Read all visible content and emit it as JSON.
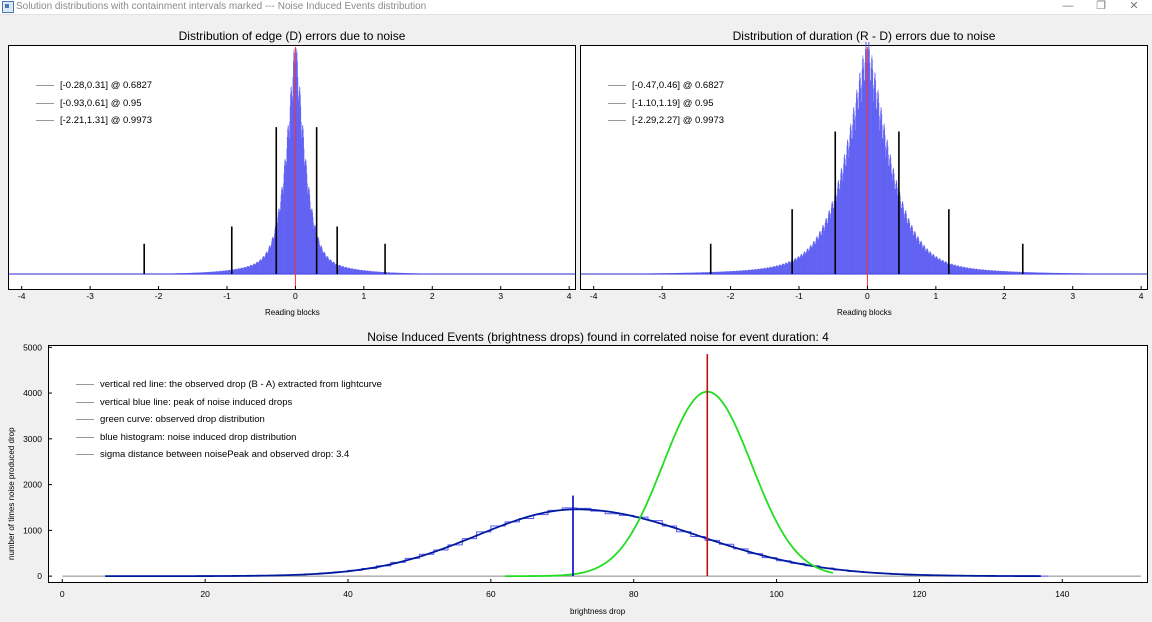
{
  "window": {
    "title": "Solution distributions with containment intervals marked --- Noise Induced Events distribution",
    "minimize_glyph": "—",
    "maximize_glyph": "❐",
    "close_glyph": "✕"
  },
  "chart_data": [
    {
      "type": "bar",
      "title": "Distribution of edge (D) errors due to noise",
      "xlabel": "Reading blocks",
      "ylabel": "",
      "xlim": [
        -4.2,
        4.1
      ],
      "xticks": [
        -4,
        -3,
        -2,
        -1,
        0,
        1,
        2,
        3,
        4
      ],
      "histogram": {
        "shape": "peaked",
        "center": 0.0,
        "scale": 0.18,
        "tail_decay": 0.45,
        "bar_color": "#4a4af0"
      },
      "center_line": {
        "x": 0.0,
        "color": "#ff3030"
      },
      "interval_markers": [
        {
          "x": -0.28,
          "height": 0.68
        },
        {
          "x": 0.31,
          "height": 0.68
        },
        {
          "x": -0.93,
          "height": 0.22
        },
        {
          "x": 0.61,
          "height": 0.22
        },
        {
          "x": -2.21,
          "height": 0.14
        },
        {
          "x": 1.31,
          "height": 0.14
        }
      ],
      "legend": [
        "[-0.28,0.31] @ 0.6827",
        "[-0.93,0.61] @ 0.95",
        "[-2.21,1.31] @ 0.9973"
      ]
    },
    {
      "type": "bar",
      "title": "Distribution of duration (R - D) errors due to noise",
      "xlabel": "Reading blocks",
      "ylabel": "",
      "xlim": [
        -4.2,
        4.1
      ],
      "xticks": [
        -4,
        -3,
        -2,
        -1,
        0,
        1,
        2,
        3,
        4
      ],
      "histogram": {
        "shape": "peaked",
        "center": 0.0,
        "scale": 0.42,
        "tail_decay": 0.8,
        "bar_color": "#4a4af0"
      },
      "center_line": {
        "x": 0.0,
        "color": "#ff3030"
      },
      "interval_markers": [
        {
          "x": -0.47,
          "height": 0.66
        },
        {
          "x": 0.46,
          "height": 0.66
        },
        {
          "x": -1.1,
          "height": 0.3
        },
        {
          "x": 1.19,
          "height": 0.3
        },
        {
          "x": -2.29,
          "height": 0.14
        },
        {
          "x": 2.27,
          "height": 0.14
        }
      ],
      "legend": [
        "[-0.47,0.46] @ 0.6827",
        "[-1.10,1.19] @ 0.95",
        "[-2.29,2.27] @ 0.9973"
      ]
    },
    {
      "type": "line",
      "title": "Noise Induced Events (brightness drops) found in correlated noise for event duration: 4",
      "xlabel": "brightness drop",
      "ylabel": "number of times noise produced drop",
      "xlim": [
        -2,
        152
      ],
      "ylim": [
        -150,
        5050
      ],
      "xticks": [
        0,
        20,
        40,
        60,
        80,
        100,
        120,
        140
      ],
      "yticks": [
        0,
        1000,
        2000,
        3000,
        4000,
        5000
      ],
      "series": [
        {
          "name": "green curve: observed drop distribution",
          "color": "#22dd22",
          "kind": "gaussian",
          "mean": 90.3,
          "sigma": 6.2,
          "peak": 4030,
          "xrange": [
            62,
            108
          ]
        },
        {
          "name": "blue histogram: noise induced drop distribution",
          "color": "#001a9e",
          "kind": "skewed",
          "mode": 72,
          "sigma_left": 14,
          "sigma_right": 17,
          "peak": 1460,
          "xrange": [
            6,
            137
          ]
        }
      ],
      "baseline": {
        "y": 0,
        "color": "#888888",
        "xrange": [
          0,
          151
        ]
      },
      "vertical_lines": [
        {
          "name": "vertical red line: the observed drop (B - A) extracted from lightcurve",
          "x": 90.3,
          "ytop": 4850,
          "color": "#c01010"
        },
        {
          "name": "vertical blue line: peak of noise induced drops",
          "x": 71.5,
          "ytop": 1760,
          "color": "#0000cc"
        }
      ],
      "legend": [
        "vertical red line: the observed drop (B - A) extracted from lightcurve",
        "vertical blue line: peak of noise induced drops",
        "green curve: observed drop distribution",
        "blue histogram: noise induced drop distribution",
        "sigma distance between noisePeak and observed drop: 3.4"
      ]
    }
  ]
}
